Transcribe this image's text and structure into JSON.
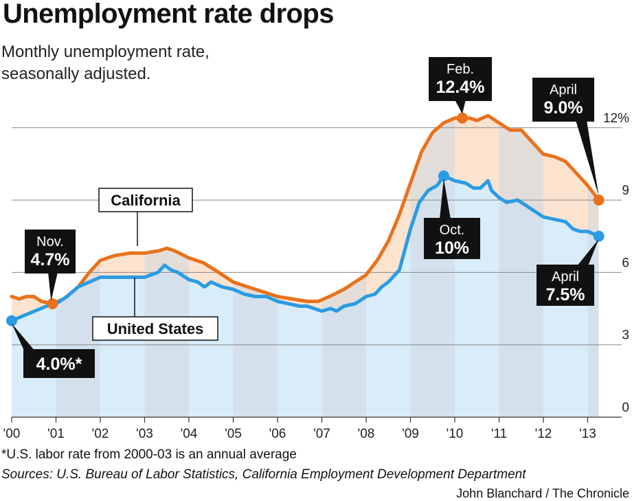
{
  "header": {
    "title": "Unemployment rate drops",
    "subtitle_line1": "Monthly unemployment rate,",
    "subtitle_line2": "seasonally adjusted."
  },
  "footer": {
    "footnote": "*U.S. labor rate from 2000-03 is an annual average",
    "sources": "Sources: U.S. Bureau of Labor Statistics, California Employment Development Department",
    "credit": "John Blanchard / The Chronicle"
  },
  "colors": {
    "california": "#e8721c",
    "united_states": "#2b9be3",
    "ca_fill": "#fbe3cf",
    "us_fill": "#d9ecf9",
    "band": "#cfd9e4",
    "label_box": "#111111"
  },
  "chart_data": {
    "type": "line",
    "xlim": [
      2000,
      2013.5
    ],
    "ylim": [
      0,
      13.5
    ],
    "y_ticks": [
      {
        "value": 0,
        "label": "0"
      },
      {
        "value": 3,
        "label": "3"
      },
      {
        "value": 6,
        "label": "6"
      },
      {
        "value": 9,
        "label": "9"
      },
      {
        "value": 12,
        "label": "12%"
      }
    ],
    "x_ticks": [
      {
        "value": 2000,
        "label": "'00"
      },
      {
        "value": 2001,
        "label": "'01"
      },
      {
        "value": 2002,
        "label": "'02"
      },
      {
        "value": 2003,
        "label": "'03"
      },
      {
        "value": 2004,
        "label": "'04"
      },
      {
        "value": 2005,
        "label": "'05"
      },
      {
        "value": 2006,
        "label": "'06"
      },
      {
        "value": 2007,
        "label": "'07"
      },
      {
        "value": 2008,
        "label": "'08"
      },
      {
        "value": 2009,
        "label": "'09"
      },
      {
        "value": 2010,
        "label": "'10"
      },
      {
        "value": 2011,
        "label": "'11"
      },
      {
        "value": 2012,
        "label": "'12"
      },
      {
        "value": 2013,
        "label": "'13"
      }
    ],
    "grid": true,
    "series": [
      {
        "name": "California",
        "x": [
          2000,
          2000.17,
          2000.33,
          2000.5,
          2000.67,
          2000.92,
          2001.17,
          2001.5,
          2001.75,
          2002,
          2002.33,
          2002.67,
          2003,
          2003.33,
          2003.5,
          2003.67,
          2004,
          2004.33,
          2004.67,
          2005,
          2005.33,
          2005.67,
          2006,
          2006.33,
          2006.67,
          2006.92,
          2007.17,
          2007.5,
          2007.75,
          2008,
          2008.25,
          2008.5,
          2008.75,
          2009,
          2009.25,
          2009.5,
          2009.75,
          2010,
          2010.17,
          2010.33,
          2010.5,
          2010.75,
          2011,
          2011.25,
          2011.5,
          2011.75,
          2012,
          2012.25,
          2012.5,
          2012.75,
          2013,
          2013.25
        ],
        "values": [
          5.0,
          4.9,
          5.0,
          5.0,
          4.8,
          4.7,
          4.9,
          5.4,
          6.0,
          6.5,
          6.7,
          6.8,
          6.8,
          6.9,
          7.0,
          6.9,
          6.6,
          6.4,
          6.0,
          5.6,
          5.4,
          5.2,
          5.0,
          4.9,
          4.8,
          4.8,
          5.0,
          5.3,
          5.6,
          5.9,
          6.5,
          7.3,
          8.4,
          9.7,
          11.0,
          11.8,
          12.2,
          12.4,
          12.4,
          12.4,
          12.3,
          12.5,
          12.2,
          11.9,
          11.9,
          11.4,
          10.9,
          10.8,
          10.6,
          10.1,
          9.6,
          9.0
        ]
      },
      {
        "name": "United States",
        "x": [
          2000,
          2000.92,
          2001,
          2001.25,
          2001.5,
          2001.75,
          2002,
          2003,
          2003.3,
          2003.45,
          2003.6,
          2003.75,
          2004,
          2004.2,
          2004.35,
          2004.5,
          2004.75,
          2005,
          2005.25,
          2005.5,
          2005.75,
          2006,
          2006.25,
          2006.5,
          2006.67,
          2006.83,
          2007,
          2007.2,
          2007.33,
          2007.5,
          2007.75,
          2008,
          2008.2,
          2008.35,
          2008.5,
          2008.75,
          2009,
          2009.2,
          2009.4,
          2009.6,
          2009.75,
          2010,
          2010.25,
          2010.42,
          2010.58,
          2010.75,
          2010.83,
          2011,
          2011.17,
          2011.42,
          2011.67,
          2012,
          2012.25,
          2012.5,
          2012.67,
          2012.83,
          2013,
          2013.25
        ],
        "values": [
          4.0,
          4.7,
          4.7,
          5.0,
          5.4,
          5.6,
          5.8,
          5.8,
          6.0,
          6.3,
          6.1,
          6.0,
          5.7,
          5.6,
          5.4,
          5.6,
          5.4,
          5.3,
          5.1,
          5.0,
          5.0,
          4.8,
          4.7,
          4.6,
          4.6,
          4.5,
          4.4,
          4.5,
          4.4,
          4.6,
          4.7,
          5.0,
          5.1,
          5.4,
          5.6,
          6.1,
          7.8,
          8.9,
          9.4,
          9.6,
          10.0,
          9.8,
          9.7,
          9.5,
          9.5,
          9.8,
          9.4,
          9.1,
          8.9,
          9.0,
          8.7,
          8.3,
          8.2,
          8.1,
          7.8,
          7.7,
          7.7,
          7.5
        ]
      }
    ],
    "annotations": [
      {
        "label_line1": "Nov.",
        "label_line2": "4.7%",
        "x": 2000.92,
        "y": 4.7,
        "series": "California"
      },
      {
        "label_line1": "Feb.",
        "label_line2": "12.4%",
        "x": 2010.17,
        "y": 12.4,
        "series": "California"
      },
      {
        "label_line1": "April",
        "label_line2": "9.0%",
        "x": 2013.25,
        "y": 9.0,
        "series": "California"
      },
      {
        "label_line1": "Oct.",
        "label_line2": "10%",
        "x": 2009.75,
        "y": 10.0,
        "series": "United States"
      },
      {
        "label_line1": "April",
        "label_line2": "7.5%",
        "x": 2013.25,
        "y": 7.5,
        "series": "United States"
      },
      {
        "label_line1": "4.0%*",
        "x": 2000,
        "y": 4.0,
        "series": "United States"
      }
    ],
    "series_labels": [
      {
        "text": "California"
      },
      {
        "text": "United States"
      }
    ]
  }
}
